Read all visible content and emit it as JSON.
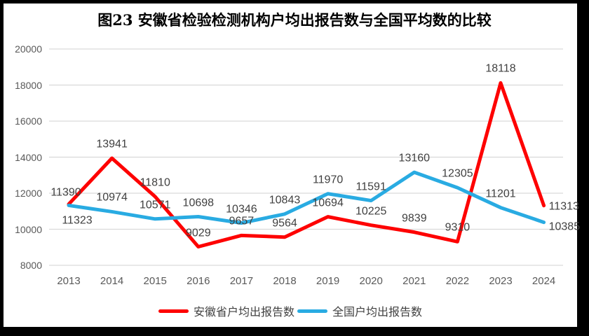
{
  "title": "图23 安徽省检验检测机构户均出报告数与全国平均数的比较",
  "chart_data": {
    "type": "line",
    "title": "图23 安徽省检验检测机构户均出报告数与全国平均数的比较",
    "categories": [
      "2013",
      "2014",
      "2015",
      "2016",
      "2017",
      "2018",
      "2019",
      "2020",
      "2021",
      "2022",
      "2023",
      "2024"
    ],
    "series": [
      {
        "name": "安徽省户均出报告数",
        "color": "#FE0000",
        "values": [
          11390,
          13941,
          11810,
          9029,
          9657,
          9564,
          10694,
          10225,
          9839,
          9310,
          18118,
          11313
        ]
      },
      {
        "name": "全国户均出报告数",
        "color": "#29ABE2",
        "values": [
          11323,
          10974,
          10571,
          10698,
          10346,
          10843,
          11970,
          11591,
          13160,
          12305,
          11201,
          10385
        ]
      }
    ],
    "xlabel": "",
    "ylabel": "",
    "ylim": [
      8000,
      20000
    ],
    "yticks": [
      8000,
      10000,
      12000,
      14000,
      16000,
      18000,
      20000
    ],
    "grid": true,
    "data_labels": true,
    "legend_position": "bottom"
  },
  "colors": {
    "grid": "#D9D9D9",
    "axis_text": "#595959",
    "label_text": "#404040",
    "frame": "#000000",
    "background": "#FFFFFF"
  }
}
